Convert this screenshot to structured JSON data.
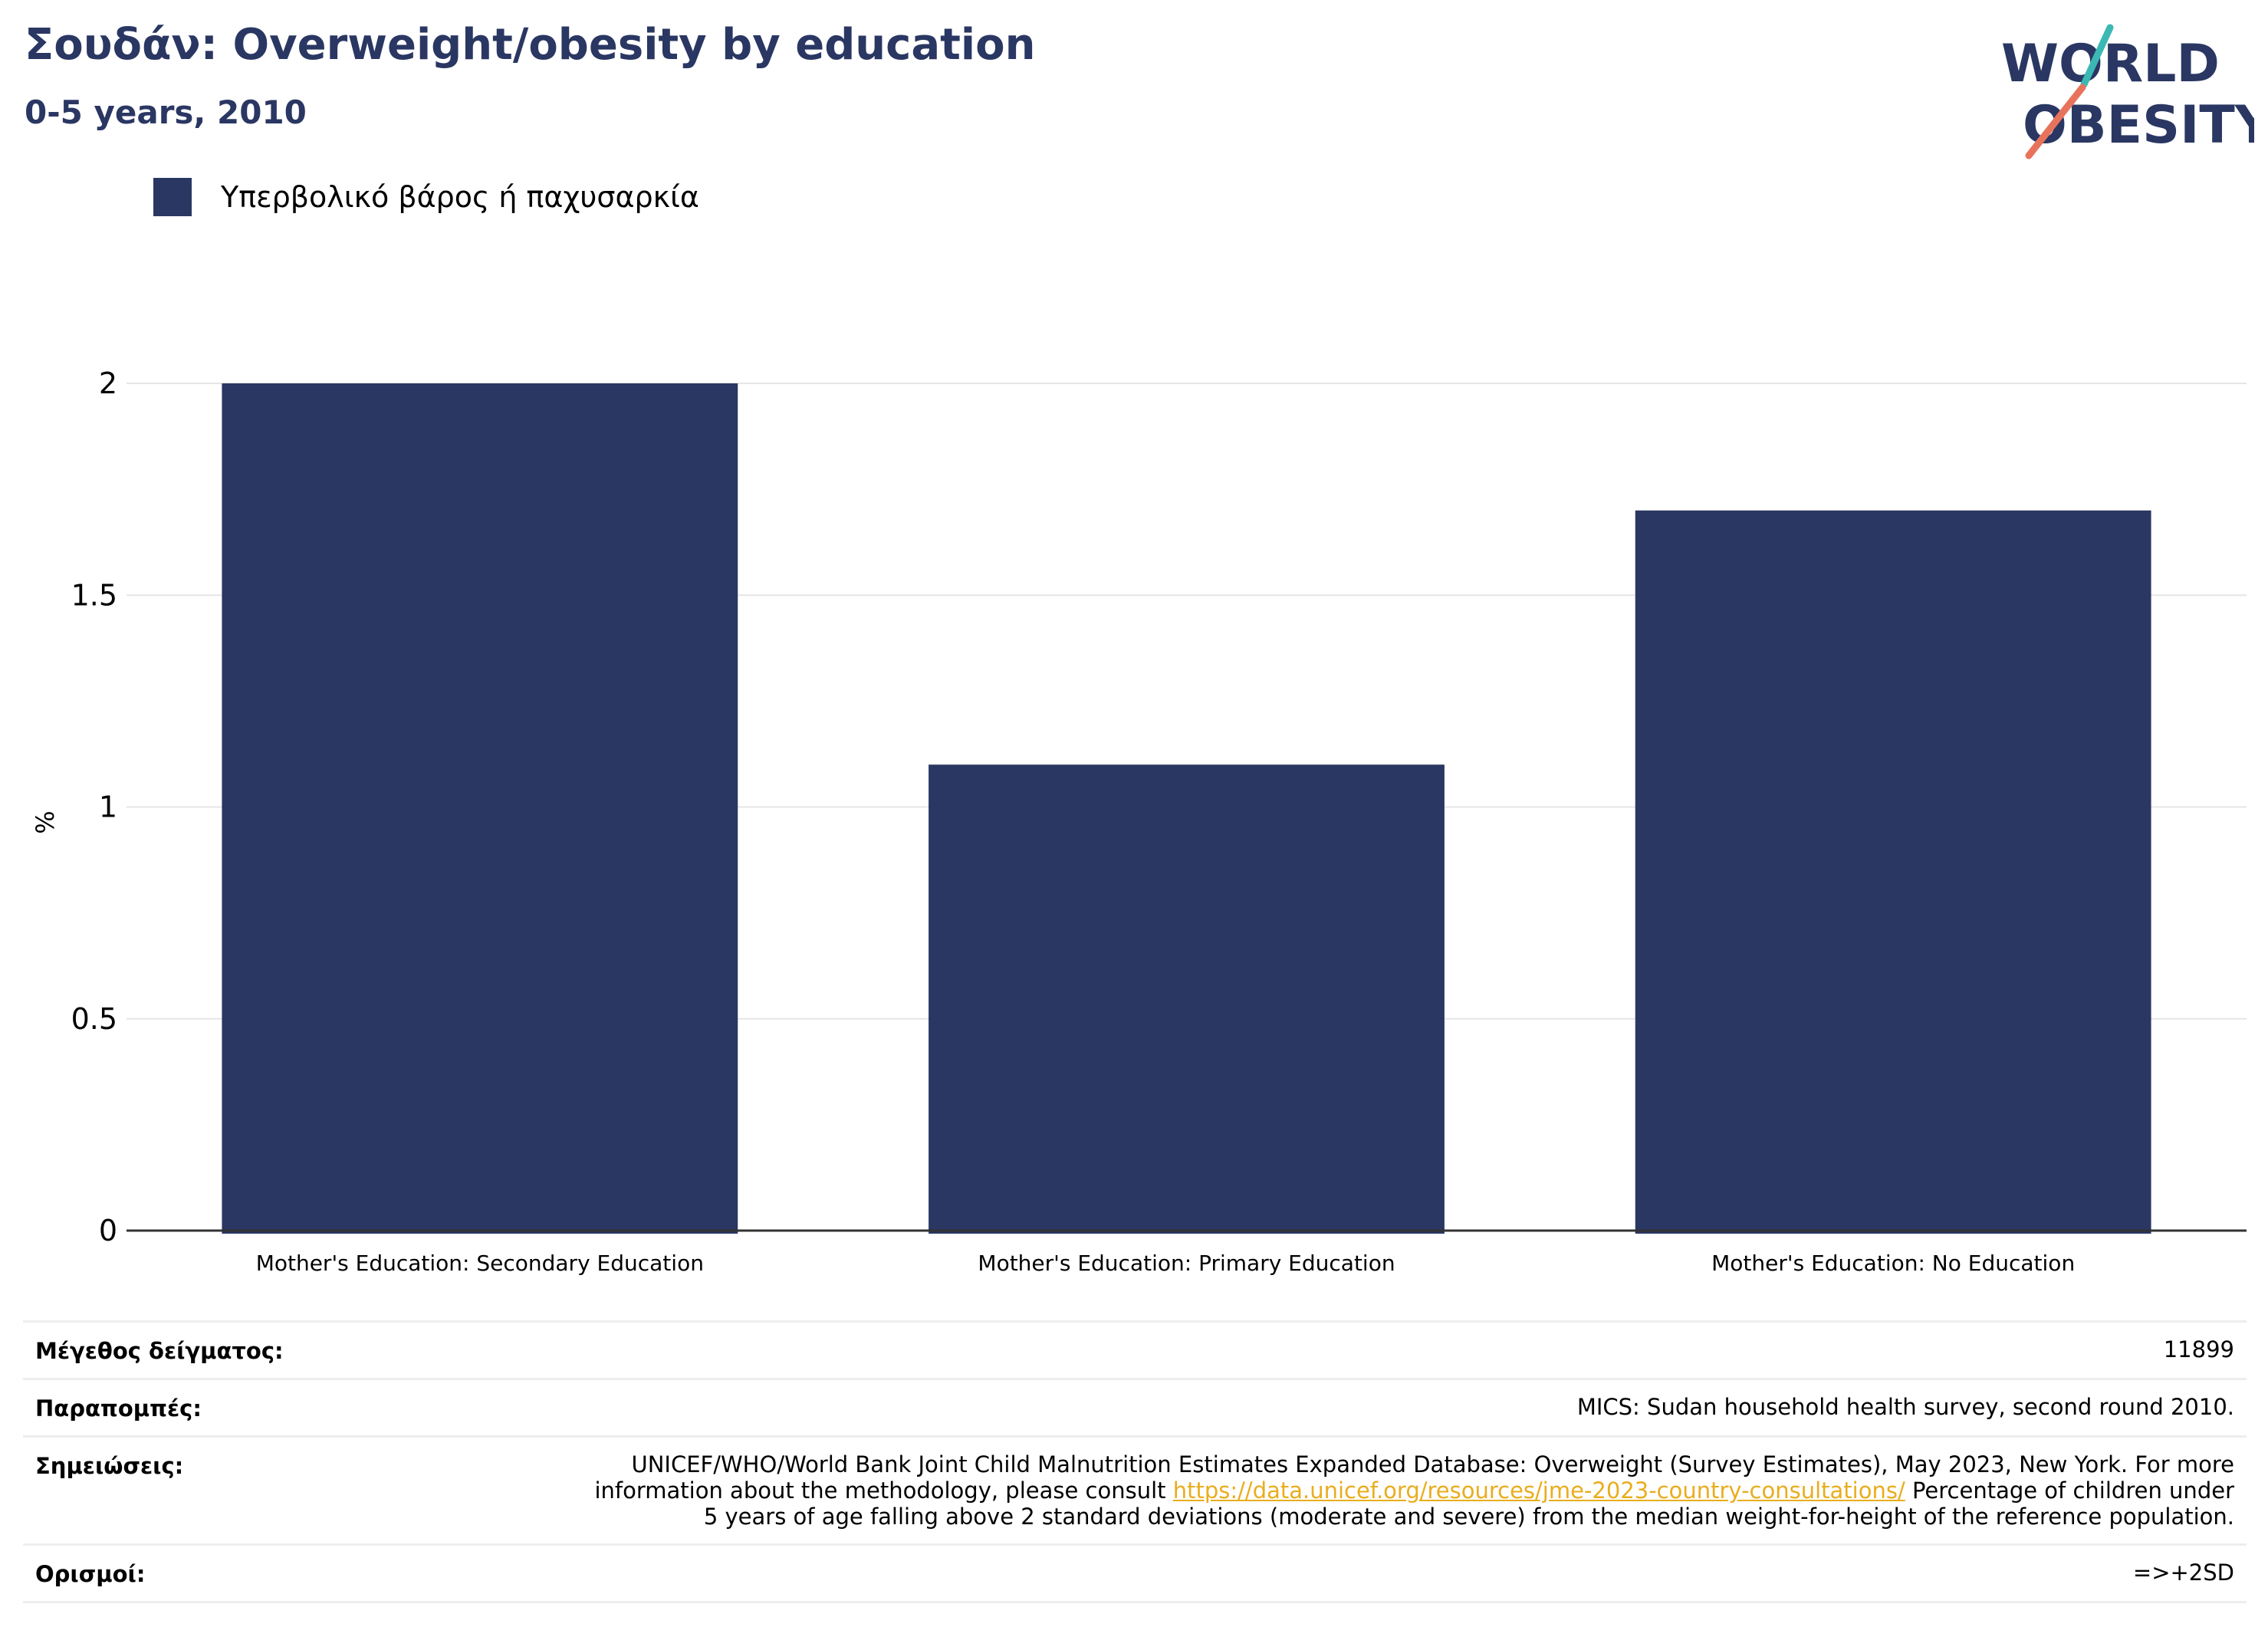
{
  "header": {
    "title": "Σουδάν: Overweight/obesity by education",
    "subtitle": "0-5 years, 2010"
  },
  "logo": {
    "line1": "WORLD",
    "line2": "OBESITY",
    "colors": {
      "text": "#2a3763",
      "teal": "#3bb8b4",
      "coral": "#e8735c"
    }
  },
  "colors": {
    "bar": "#2a3763",
    "grid": "#e6e6e6",
    "axis": "#333333",
    "link": "#e9ad1e"
  },
  "chart_data": {
    "type": "bar",
    "categories": [
      "Mother's Education: Secondary Education",
      "Mother's Education: Primary Education",
      "Mother's Education: No Education"
    ],
    "series": [
      {
        "name": "Υπερβολικό βάρος ή παχυσαρκία",
        "values": [
          2.0,
          1.1,
          1.7
        ]
      }
    ],
    "title": "Σουδάν: Overweight/obesity by education",
    "subtitle": "0-5 years, 2010",
    "xlabel": "",
    "ylabel": "%",
    "ylim": [
      0,
      2
    ],
    "yticks": [
      0,
      0.5,
      1,
      1.5,
      2
    ],
    "ytick_labels": [
      "0",
      "0.5",
      "1",
      "1.5",
      "2"
    ],
    "grid": true,
    "legend": "top-left"
  },
  "meta": {
    "rows": [
      {
        "key": "Μέγεθος δείγματος:",
        "value": "11899"
      },
      {
        "key": "Παραπομπές:",
        "value": "MICS: Sudan household health survey, second round 2010."
      },
      {
        "key": "Σημειώσεις:",
        "value_before": "UNICEF/WHO/World Bank Joint Child Malnutrition Estimates Expanded Database: Overweight (Survey Estimates), May 2023, New York. For more information about the methodology, please consult ",
        "link": "https://data.unicef.org/resources/jme-2023-country-consultations/",
        "value_after": " Percentage of children under 5 years of age falling above 2 standard deviations (moderate and severe) from the median weight-for-height of the reference population."
      },
      {
        "key": "Ορισμοί:",
        "value": "=>+2SD"
      }
    ]
  }
}
